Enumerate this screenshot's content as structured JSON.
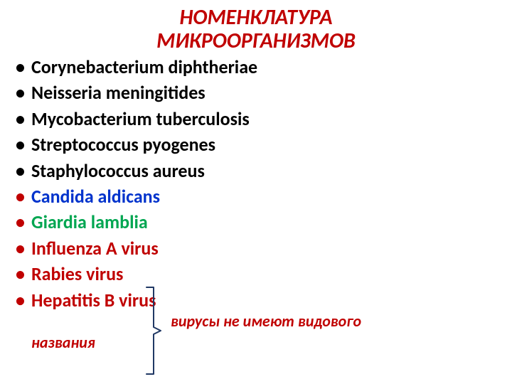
{
  "colors": {
    "title": "#c00000",
    "black": "#000000",
    "blue": "#0033cc",
    "green": "#00a651",
    "red": "#c00000",
    "bracket": "#203864"
  },
  "title_line1": "НОМЕНКЛАТУРА",
  "title_line2": "МИКРООРГАНИЗМОВ",
  "items": [
    {
      "text": "Corynebacterium diphtheriae",
      "color": "#000000",
      "bullet": "#000000"
    },
    {
      "text": "Neisseria meningitides",
      "color": "#000000",
      "bullet": "#000000"
    },
    {
      "text": "Mycobacterium tuberculosis",
      "color": "#000000",
      "bullet": "#000000"
    },
    {
      "text": "Streptococcus pyogenes",
      "color": "#000000",
      "bullet": "#000000"
    },
    {
      "text": "Staphylococcus aureus",
      "color": "#000000",
      "bullet": "#000000"
    },
    {
      "text": "Candida aldicans",
      "color": "#0033cc",
      "bullet": "#c00000"
    },
    {
      "text": "Giardia lamblia",
      "color": "#00a651",
      "bullet": "#c00000"
    },
    {
      "text": "Influenza A virus",
      "color": "#c00000",
      "bullet": "#c00000"
    },
    {
      "text": "Rabies virus",
      "color": "#c00000",
      "bullet": "#c00000"
    },
    {
      "text": "Hepatitis B virus",
      "color": "#c00000",
      "bullet": "#c00000"
    }
  ],
  "note_main": "вирусы не имеют видового",
  "note_tail": "названия",
  "note_color": "#c00000",
  "bracket": {
    "color": "#203864",
    "stroke_width": 2
  },
  "typography": {
    "title_fontsize": 30,
    "item_fontsize": 26,
    "note_fontsize": 22
  }
}
